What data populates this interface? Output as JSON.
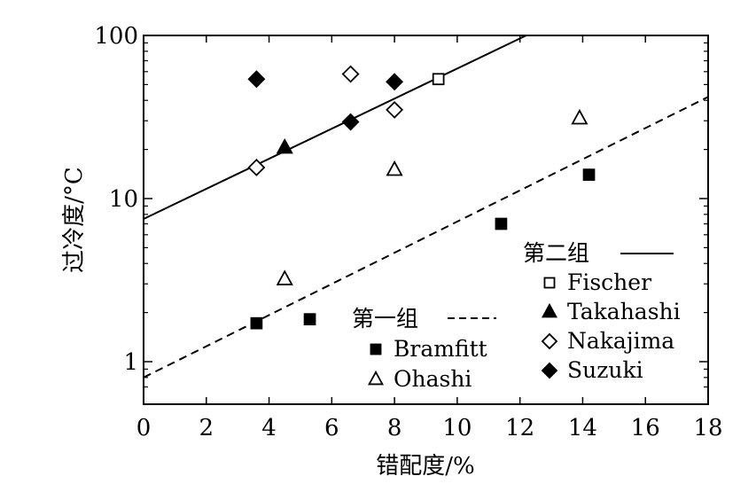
{
  "chart_data": {
    "type": "scatter",
    "xlabel": "错配度/%",
    "ylabel": "过冷度/°C",
    "xlim": [
      0,
      18
    ],
    "ylim": [
      0.6,
      100
    ],
    "yscale": "log",
    "x_ticks": [
      "0",
      "2",
      "4",
      "6",
      "8",
      "10",
      "12",
      "14",
      "16",
      "18"
    ],
    "y_ticks": [
      "1",
      "10",
      "100"
    ],
    "grid": false,
    "legend_groups": [
      {
        "title": "第二组",
        "line_style": "solid",
        "entries": [
          "Fischer",
          "Takahashi",
          "Nakajima",
          "Suzuki"
        ]
      },
      {
        "title": "第一组",
        "line_style": "dashed",
        "entries": [
          "Bramfitt",
          "Ohashi"
        ]
      }
    ],
    "series": [
      {
        "name": "Fischer",
        "marker": "square-open",
        "points": [
          [
            9.4,
            54
          ]
        ]
      },
      {
        "name": "Takahashi",
        "marker": "triangle-filled",
        "points": [
          [
            4.5,
            20.5
          ]
        ]
      },
      {
        "name": "Nakajima",
        "marker": "diamond-open",
        "points": [
          [
            3.6,
            15.5
          ],
          [
            6.6,
            58
          ],
          [
            8.0,
            35
          ]
        ]
      },
      {
        "name": "Suzuki",
        "marker": "diamond-filled",
        "points": [
          [
            3.6,
            54
          ],
          [
            6.6,
            29.5
          ],
          [
            8.0,
            52
          ]
        ]
      },
      {
        "name": "Bramfitt",
        "marker": "square-filled",
        "points": [
          [
            3.6,
            1.72
          ],
          [
            5.3,
            1.82
          ],
          [
            11.4,
            7.0
          ],
          [
            14.2,
            14.0
          ]
        ]
      },
      {
        "name": "Ohashi",
        "marker": "triangle-open",
        "points": [
          [
            4.5,
            3.2
          ],
          [
            8.0,
            15.0
          ],
          [
            13.9,
            31.0
          ]
        ]
      }
    ],
    "fit_lines": [
      {
        "group": "第二组",
        "style": "solid",
        "points": [
          [
            0,
            7.5
          ],
          [
            12.2,
            100
          ]
        ]
      },
      {
        "group": "第一组",
        "style": "dashed",
        "points": [
          [
            0,
            0.8
          ],
          [
            18,
            42
          ]
        ]
      }
    ]
  }
}
